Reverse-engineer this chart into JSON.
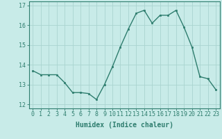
{
  "x": [
    0,
    1,
    2,
    3,
    4,
    5,
    6,
    7,
    8,
    9,
    10,
    11,
    12,
    13,
    14,
    15,
    16,
    17,
    18,
    19,
    20,
    21,
    22,
    23
  ],
  "y": [
    13.7,
    13.5,
    13.5,
    13.5,
    13.1,
    12.6,
    12.6,
    12.55,
    12.25,
    13.0,
    13.9,
    14.9,
    15.8,
    16.6,
    16.75,
    16.1,
    16.5,
    16.5,
    16.75,
    15.9,
    14.9,
    13.4,
    13.3,
    12.75
  ],
  "line_color": "#2e7d6e",
  "bg_color": "#c8ebe8",
  "grid_color": "#aad4d0",
  "xlabel": "Humidex (Indice chaleur)",
  "ylim": [
    11.8,
    17.2
  ],
  "xlim": [
    -0.5,
    23.5
  ],
  "yticks": [
    12,
    13,
    14,
    15,
    16,
    17
  ],
  "ytick_labels": [
    "12",
    "13",
    "14",
    "15",
    "16",
    "17"
  ],
  "xtick_labels": [
    "0",
    "1",
    "2",
    "3",
    "4",
    "5",
    "6",
    "7",
    "8",
    "9",
    "10",
    "11",
    "12",
    "13",
    "14",
    "15",
    "16",
    "17",
    "18",
    "19",
    "20",
    "21",
    "22",
    "23"
  ],
  "marker": "s",
  "marker_size": 2.0,
  "line_width": 1.0,
  "xlabel_fontsize": 7,
  "tick_fontsize": 6,
  "axis_color": "#2e7d6e",
  "text_color": "#2e7d6e"
}
